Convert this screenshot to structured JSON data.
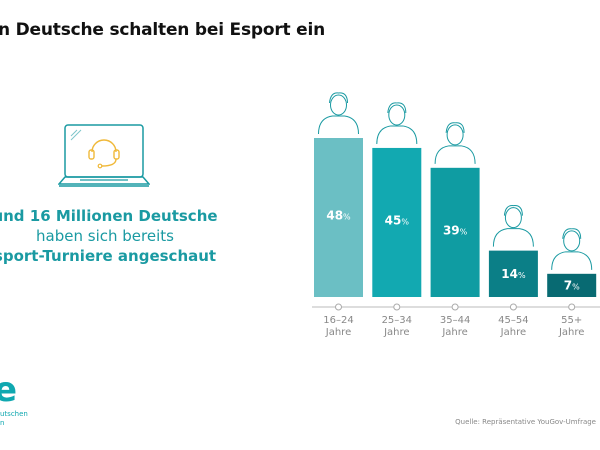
{
  "title": "n Deutsche schalten bei Esport ein",
  "claim": {
    "line1": "und 16 Millionen Deutsche",
    "line2": "haben sich bereits",
    "line3": "sport-Turniere angeschaut"
  },
  "logo": {
    "letter": "e",
    "line1": "utschen",
    "line2": "n"
  },
  "source": "Quelle: Repräsentative YouGov-Umfrage",
  "icons": [
    "laptop-headset-icon",
    "person-icon"
  ],
  "chart_data": {
    "type": "bar",
    "categories": [
      "16–24 Jahre",
      "25–34 Jahre",
      "35–44 Jahre",
      "45–54 Jahre",
      "55+ Jahre"
    ],
    "category_lines": [
      [
        "16–24",
        "Jahre"
      ],
      [
        "25–34",
        "Jahre"
      ],
      [
        "35–44",
        "Jahre"
      ],
      [
        "45–54",
        "Jahre"
      ],
      [
        "55+",
        "Jahre"
      ]
    ],
    "values": [
      48,
      45,
      39,
      14,
      7
    ],
    "value_labels": [
      "48",
      "45",
      "39",
      "14",
      "7"
    ],
    "unit": "%",
    "colors": [
      "#6bbfc4",
      "#12a9b1",
      "#0f9ca2",
      "#0b7f87",
      "#086a72"
    ],
    "ylim": [
      0,
      50
    ],
    "grid": false
  }
}
